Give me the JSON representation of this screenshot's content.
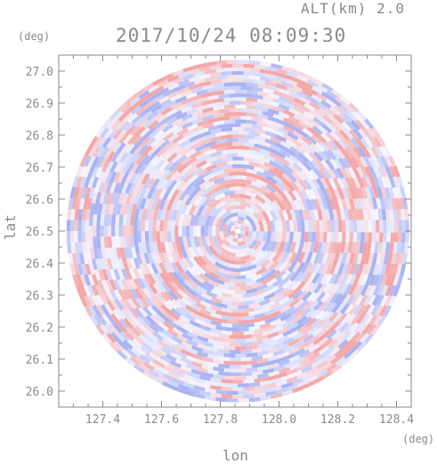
{
  "header": {
    "altitude_label": "ALT(km) 2.0",
    "timestamp": "2017/10/24 08:09:30"
  },
  "colors": {
    "positive": "#f4a7a7",
    "negative": "#a9b4f2",
    "neutral": "#f5f5ff",
    "axis": "#8a8a8a"
  },
  "chart_data": {
    "type": "heatmap",
    "title": "2017/10/24 08:09:30",
    "subtitle": "ALT(km) 2.0",
    "xlabel": "lon",
    "ylabel": "lat",
    "x_unit": "(deg)",
    "y_unit": "(deg)",
    "xlim": [
      127.25,
      128.45
    ],
    "ylim": [
      25.95,
      27.05
    ],
    "x_ticks": [
      "127.4",
      "127.6",
      "127.8",
      "128.0",
      "128.2",
      "128.4"
    ],
    "y_ticks": [
      "26.0",
      "26.1",
      "26.2",
      "26.3",
      "26.4",
      "26.5",
      "26.6",
      "26.7",
      "26.8",
      "26.9",
      "27.0"
    ],
    "center": {
      "lon": 127.86,
      "lat": 26.5
    },
    "radius_lat_deg": 0.535,
    "colorscale": [
      "negative",
      "neutral",
      "positive"
    ],
    "grid": false
  }
}
